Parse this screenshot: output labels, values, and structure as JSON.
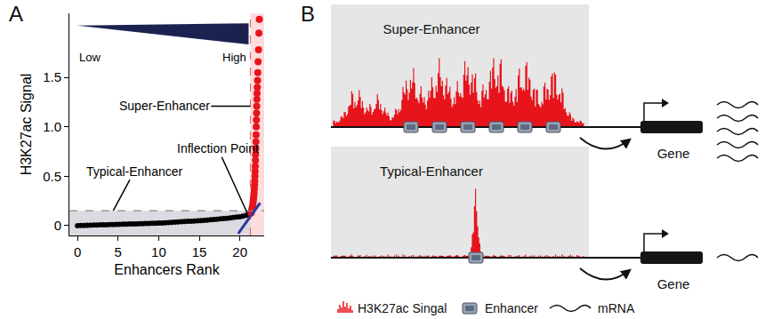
{
  "chart_data": {
    "type": "scatter",
    "panel": "A",
    "xlabel": "Enhancers Rank",
    "ylabel": "H3K27ac Signal",
    "xlim": [
      -1,
      23
    ],
    "ylim": [
      -0.1,
      2.15
    ],
    "xticks": [
      0,
      5,
      10,
      15,
      20
    ],
    "yticks": [
      0,
      0.5,
      {
        "value": 1,
        "label": "1.0"
      },
      1.5
    ],
    "grid": false,
    "series": [
      {
        "color": "#000000",
        "x": [
          0,
          0.4,
          0.8,
          1.2,
          1.6,
          2,
          2.4,
          2.8,
          3.2,
          3.6,
          4,
          4.4,
          4.8,
          5.2,
          5.6,
          6,
          6.4,
          6.8,
          7.2,
          7.6,
          8,
          8.4,
          8.8,
          9.2,
          9.6,
          10,
          10.4,
          10.8,
          11.2,
          11.6,
          12,
          12.4,
          12.8,
          13.2,
          13.6,
          14,
          14.4,
          14.8,
          15.2,
          15.6,
          16,
          16.4,
          16.8,
          17.2,
          17.6,
          18,
          18.4,
          18.8,
          19.2,
          19.6,
          20,
          20.4,
          20.8,
          21.2
        ],
        "values": [
          0,
          0.001,
          0.002,
          0.003,
          0.004,
          0.005,
          0.006,
          0.007,
          0.008,
          0.009,
          0.01,
          0.011,
          0.012,
          0.013,
          0.014,
          0.015,
          0.016,
          0.017,
          0.018,
          0.019,
          0.02,
          0.021,
          0.022,
          0.023,
          0.024,
          0.025,
          0.027,
          0.029,
          0.031,
          0.033,
          0.035,
          0.037,
          0.039,
          0.041,
          0.043,
          0.045,
          0.047,
          0.049,
          0.051,
          0.053,
          0.056,
          0.059,
          0.062,
          0.065,
          0.068,
          0.071,
          0.074,
          0.078,
          0.082,
          0.086,
          0.09,
          0.096,
          0.104,
          0.115
        ]
      },
      {
        "color": "#e8141c",
        "x": [
          21.4,
          21.45,
          21.5,
          21.55,
          21.6,
          21.64,
          21.68,
          21.72,
          21.75,
          21.78,
          21.81,
          21.84,
          21.86,
          21.88,
          21.9,
          21.92,
          21.94,
          21.96,
          21.98,
          22,
          22.02,
          22.04,
          22.06,
          22.08,
          22.1,
          22.12,
          22.15,
          22.18,
          22.21,
          22.25,
          22.3,
          22.35,
          22.4
        ],
        "values": [
          0.13,
          0.15,
          0.17,
          0.19,
          0.21,
          0.24,
          0.27,
          0.3,
          0.33,
          0.37,
          0.41,
          0.45,
          0.5,
          0.55,
          0.6,
          0.66,
          0.72,
          0.78,
          0.85,
          0.92,
          1,
          1.07,
          1.14,
          1.21,
          1.28,
          1.34,
          1.4,
          1.47,
          1.55,
          1.66,
          1.78,
          1.95,
          2.09
        ]
      }
    ],
    "tangent": {
      "x": [
        19.8,
        22.5
      ],
      "y": [
        -0.08,
        0.23
      ],
      "color": "#2c3a9e"
    },
    "cutoff_rank": 21.3,
    "cutoff_signal": 0.15,
    "annotations": [
      "Super-Enhancer",
      "Typical-Enhancer",
      "Inflection Point"
    ],
    "gradient_labels": [
      "Low",
      "High"
    ]
  },
  "diagram": {
    "panel": "B",
    "super_enhancer": {
      "title": "Super-Enhancer",
      "enhancer_count": 6,
      "mrna_count": 5,
      "gene": "Gene"
    },
    "typical_enhancer": {
      "title": "Typical-Enhancer",
      "enhancer_count": 1,
      "mrna_count": 1,
      "gene": "Gene"
    },
    "legend": {
      "signal": "H3K27ac Singal",
      "enhancer": "Enhancer",
      "mrna": "mRNA"
    }
  }
}
